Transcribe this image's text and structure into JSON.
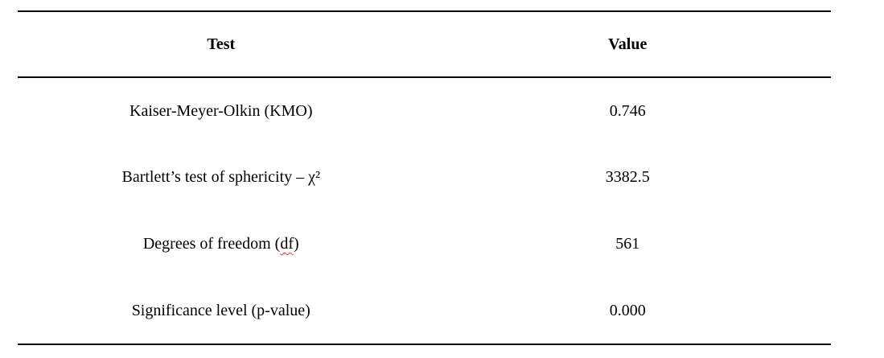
{
  "colors": {
    "text": "#000000",
    "table_border": "#000000",
    "background": "#ffffff",
    "spellcheck_underline": "#dd3c3c"
  },
  "table": {
    "headers": [
      "Test",
      "Value"
    ],
    "rows": [
      {
        "test": "Kaiser-Meyer-Olkin (KMO)",
        "value": "0.746"
      },
      {
        "test": "Bartlett’s test of sphericity – χ²",
        "value": "3382.5"
      },
      {
        "test_prefix": "Degrees of freedom (",
        "test_spellcheck": "df",
        "test_suffix": ")",
        "value": "561"
      },
      {
        "test": "Significance level (p-value)",
        "value": "0.000"
      }
    ]
  }
}
